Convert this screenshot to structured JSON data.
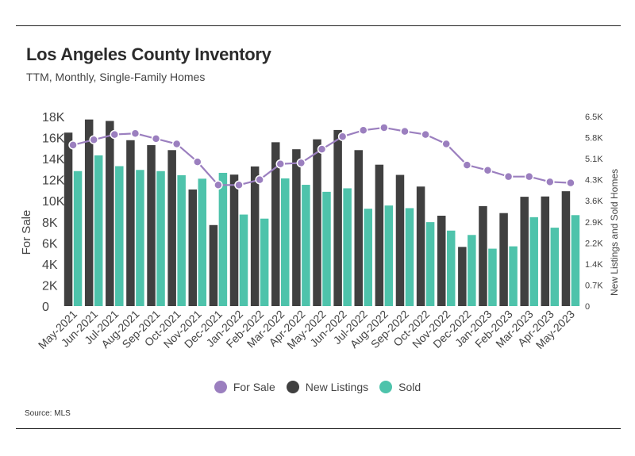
{
  "header": {
    "title": "Los Angeles County Inventory",
    "subtitle": "TTM, Monthly, Single-Family Homes"
  },
  "footer": {
    "source": "Source:  MLS"
  },
  "chart_data": {
    "type": "bar",
    "categories": [
      "May-2021",
      "Jun-2021",
      "Jul-2021",
      "Aug-2021",
      "Sep-2021",
      "Oct-2021",
      "Nov-2021",
      "Dec-2021",
      "Jan-2022",
      "Feb-2022",
      "Mar-2022",
      "Apr-2022",
      "May-2022",
      "Jun-2022",
      "Jul-2022",
      "Aug-2022",
      "Sep-2022",
      "Oct-2022",
      "Nov-2022",
      "Dec-2022",
      "Jan-2023",
      "Feb-2023",
      "Mar-2023",
      "Apr-2023",
      "May-2023"
    ],
    "series": [
      {
        "name": "For Sale",
        "type": "line",
        "axis": "left",
        "color": "#9b7fbf",
        "values": [
          15300,
          15800,
          16300,
          16400,
          15900,
          15400,
          13700,
          11500,
          11500,
          12000,
          13500,
          13600,
          14900,
          16100,
          16700,
          16950,
          16600,
          16300,
          15400,
          13400,
          12900,
          12300,
          12300,
          11800,
          11700
        ]
      },
      {
        "name": "New Listings",
        "type": "bar",
        "axis": "right",
        "color": "#404040",
        "values": [
          5950,
          6400,
          6350,
          5690,
          5520,
          5350,
          4000,
          2780,
          4510,
          4790,
          5620,
          5380,
          5720,
          6040,
          5350,
          4850,
          4500,
          4100,
          3100,
          2030,
          3430,
          3190,
          3750,
          3760,
          3940
        ]
      },
      {
        "name": "Sold",
        "type": "bar",
        "axis": "right",
        "color": "#4ec3ab",
        "values": [
          4630,
          5170,
          4800,
          4670,
          4630,
          4490,
          4370,
          4570,
          3140,
          3000,
          4380,
          4160,
          3920,
          4040,
          3340,
          3450,
          3360,
          2880,
          2590,
          2440,
          1970,
          2050,
          3050,
          2690,
          3120
        ]
      }
    ],
    "y_left": {
      "label": "For Sale",
      "ylim": [
        0,
        18000
      ],
      "ticks": [
        "0",
        "2K",
        "4K",
        "6K",
        "8K",
        "10K",
        "12K",
        "14K",
        "16K",
        "18K"
      ]
    },
    "y_right": {
      "label": "New Listings and Sold Homes",
      "ylim": [
        0,
        6500
      ],
      "ticks": [
        "0",
        "0.7K",
        "1.4K",
        "2.2K",
        "2.9K",
        "3.6K",
        "4.3K",
        "5.1K",
        "5.8K",
        "6.5K"
      ]
    },
    "grid": false,
    "legend_position": "bottom"
  }
}
